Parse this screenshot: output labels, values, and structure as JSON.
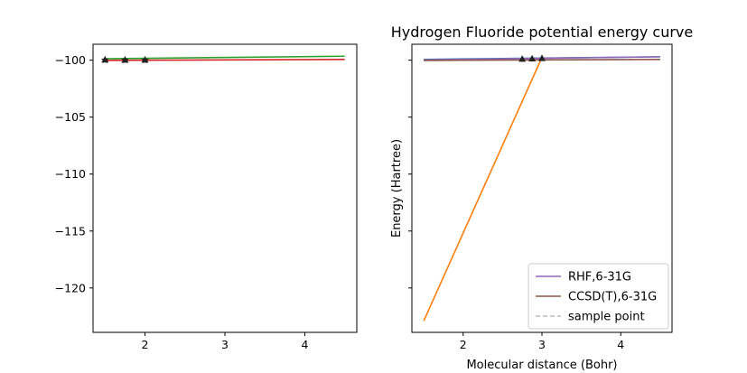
{
  "chart_data": [
    {
      "type": "line",
      "title": "",
      "xlabel": "",
      "ylabel": "",
      "xlim": [
        1.35,
        4.65
      ],
      "ylim": [
        -123.9,
        -98.6
      ],
      "xticks": [
        2,
        3,
        4
      ],
      "yticks": [
        -100,
        -105,
        -110,
        -115,
        -120
      ],
      "series": [
        {
          "color": "#2ca02c",
          "x": [
            1.5,
            4.5
          ],
          "y": [
            -99.87,
            -99.65
          ],
          "marker": "none"
        },
        {
          "color": "#d62728",
          "x": [
            1.5,
            4.5
          ],
          "y": [
            -100.02,
            -99.93
          ],
          "marker": "none"
        },
        {
          "color": "#222222",
          "x": [
            1.5,
            1.75,
            2.0
          ],
          "y": [
            -99.95,
            -99.96,
            -99.96
          ],
          "marker": "triangle"
        },
        {
          "color": "#222222",
          "x": [
            1.5,
            1.75,
            2.0
          ],
          "y": [
            -99.98,
            -99.99,
            -99.99
          ],
          "marker": "star"
        }
      ]
    },
    {
      "type": "line",
      "title": "Hydrogen Fluoride potential energy curve",
      "xlabel": "Molecular distance (Bohr)",
      "ylabel": "Energy (Hartree)",
      "xlim": [
        1.35,
        4.65
      ],
      "ylim": [
        -123.9,
        -98.6
      ],
      "xticks": [
        2,
        3,
        4
      ],
      "yticks": [
        -100,
        -105,
        -110,
        -115,
        -120
      ],
      "legend_position": "lower-right",
      "series": [
        {
          "color": "#ff7f0e",
          "x": [
            1.5,
            3.0
          ],
          "y": [
            -122.9,
            -99.75
          ],
          "marker": "none"
        },
        {
          "color": "#1f77b4",
          "x": [
            1.5,
            4.5
          ],
          "y": [
            -99.93,
            -99.7
          ],
          "marker": "none"
        },
        {
          "color": "#9467bd",
          "name": "RHF,6-31G",
          "x": [
            1.5,
            4.5
          ],
          "y": [
            -99.97,
            -99.7
          ],
          "marker": "none"
        },
        {
          "color": "#8c564b",
          "name": "CCSD(T),6-31G",
          "x": [
            1.5,
            4.5
          ],
          "y": [
            -100.02,
            -99.93
          ],
          "marker": "none"
        },
        {
          "color": "#222222",
          "x": [
            2.75,
            2.875,
            3.0
          ],
          "y": [
            -99.88,
            -99.85,
            -99.82
          ],
          "marker": "triangle"
        },
        {
          "color": "#bbbbbb",
          "name": "sample point",
          "x": [],
          "y": [],
          "marker": "none",
          "dash": true
        }
      ]
    }
  ]
}
